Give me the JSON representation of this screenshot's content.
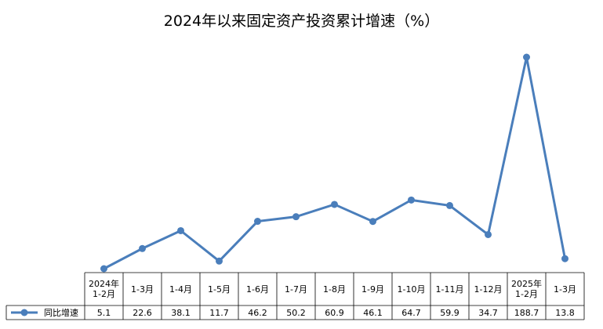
{
  "chart_data": {
    "type": "line",
    "title": "2024年以来固定资产投资累计增速（%）",
    "categories": [
      "2024年1-2月",
      "1-3月",
      "1-4月",
      "1-5月",
      "1-6月",
      "1-7月",
      "1-8月",
      "1-9月",
      "1-10月",
      "1-11月",
      "1-12月",
      "2025年1-2月",
      "1-3月"
    ],
    "series": [
      {
        "name": "同比增速",
        "color": "#4a7ebb",
        "values": [
          5.1,
          22.6,
          38.1,
          11.7,
          46.2,
          50.2,
          60.9,
          46.1,
          64.7,
          59.9,
          34.7,
          188.7,
          13.8
        ]
      }
    ]
  }
}
